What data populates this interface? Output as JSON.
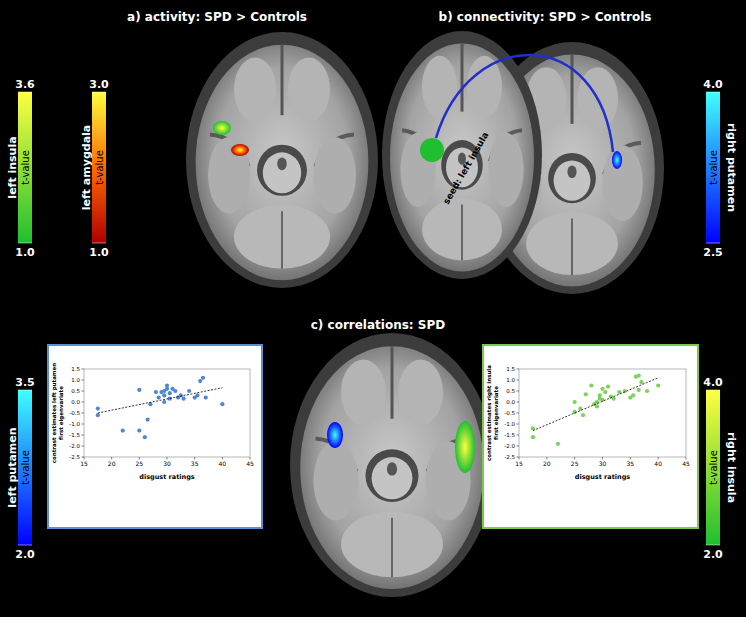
{
  "titles": [
    "a) activity: SPD > Controls",
    "b) connectivity: SPD > Controls",
    "c) correlations: SPD"
  ],
  "seed_label": "seed: left insula",
  "colorbars": [
    {
      "region": "left insula",
      "label": "t-value",
      "range": [
        1,
        3.6
      ],
      "ticks": [
        {
          "value": 1,
          "label": "1.0"
        },
        3.6
      ],
      "colors": [
        "#1fbf2f",
        "#ffff40"
      ]
    },
    {
      "region": "left amygdala",
      "label": "t-value",
      "range": [
        1,
        3
      ],
      "ticks": [
        {
          "value": 1,
          "label": "1.0"
        },
        {
          "value": 3,
          "label": "3.0"
        }
      ],
      "colors": [
        "#b00000",
        "#ff6a00",
        "#ffff40"
      ]
    },
    {
      "region": "right putamen",
      "label": "t-value",
      "range": [
        2.5,
        4
      ],
      "ticks": [
        2.5,
        {
          "value": 4,
          "label": "4.0"
        }
      ],
      "colors": [
        "#0000ff",
        "#40ffff"
      ]
    },
    {
      "region": "left putamen",
      "label": "t-value",
      "range": [
        2,
        3.5
      ],
      "ticks": [
        {
          "value": 2,
          "label": "2.0"
        },
        3.5
      ],
      "colors": [
        "#0000ff",
        "#40ffff"
      ]
    },
    {
      "region": "right insula",
      "label": "t-value",
      "range": [
        2,
        4
      ],
      "ticks": [
        {
          "value": 2,
          "label": "2.0"
        },
        {
          "value": 4,
          "label": "4.0"
        }
      ],
      "colors": [
        "#1fbf2f",
        "#ffff40"
      ]
    }
  ],
  "chart_data": [
    {
      "type": "scatter",
      "x_label": "disgust ratings",
      "y_label": [
        "contrast estimates left putamen",
        "first eigenvariate"
      ],
      "xlim": [
        15,
        45
      ],
      "xticks": [
        15,
        20,
        25,
        30,
        35,
        40,
        45
      ],
      "ylim": [
        -2.5,
        1.5
      ],
      "yticks": [
        -2.5,
        {
          "value": -2,
          "label": "-2.0"
        },
        -1.5,
        {
          "value": -1,
          "label": "-1.0"
        },
        -0.5,
        {
          "value": 0,
          "label": "0.0"
        },
        0.5,
        {
          "value": 1,
          "label": "1.0"
        },
        1.5
      ],
      "grid": false,
      "series": [
        {
          "type": "scatter",
          "marker": "circle",
          "color": "#4f86d9",
          "x": [
            17.5,
            17.5,
            22,
            25,
            25,
            26,
            26.5,
            27,
            28,
            28.5,
            29,
            29.5,
            29.5,
            29.5,
            30,
            30,
            30.5,
            30.5,
            31,
            31.5,
            32,
            32.5,
            33,
            34,
            35,
            35.5,
            36,
            36.5,
            37,
            40
          ],
          "values": [
            -0.3,
            -0.6,
            -1.3,
            0.55,
            -1.3,
            -1.6,
            -0.8,
            -0.1,
            0.45,
            0.2,
            0.45,
            0.5,
            0.3,
            0,
            0.6,
            0.75,
            0.4,
            0.15,
            0.6,
            0.5,
            0.2,
            0.3,
            0.15,
            0.5,
            0.2,
            0.3,
            0.95,
            1.1,
            0.2,
            -0.1
          ]
        },
        {
          "type": "line",
          "line_style": "dashed",
          "color": "#000000",
          "x": [
            17.5,
            40
          ],
          "values": [
            -0.5,
            0.65
          ]
        }
      ]
    },
    {
      "type": "scatter",
      "x_label": "disgust ratings",
      "y_label": [
        "contrast estimates right insula",
        "first eigenvariate"
      ],
      "xlim": [
        15,
        45
      ],
      "xticks": [
        15,
        20,
        25,
        30,
        35,
        40,
        45
      ],
      "ylim": [
        -2.5,
        1.5
      ],
      "yticks": [
        -2.5,
        {
          "value": -2,
          "label": "-2.0"
        },
        -1.5,
        {
          "value": -1,
          "label": "-1.0"
        },
        -0.5,
        {
          "value": 0,
          "label": "0.0"
        },
        0.5,
        {
          "value": 1,
          "label": "1.0"
        },
        1.5
      ],
      "grid": false,
      "series": [
        {
          "type": "scatter",
          "marker": "circle",
          "color": "#7dd35a",
          "x": [
            17.5,
            17.5,
            22,
            25,
            25,
            26,
            26.5,
            27,
            28,
            28.5,
            29,
            29,
            29.5,
            29.5,
            30,
            30,
            30.5,
            31,
            31.5,
            32,
            33,
            34,
            35,
            35.5,
            36,
            36.5,
            36.5,
            37,
            38,
            40
          ],
          "values": [
            -1.2,
            -1.6,
            -1.9,
            0,
            -0.45,
            -0.3,
            -0.6,
            0.35,
            0.75,
            -0.1,
            -0.2,
            0,
            0.3,
            0.15,
            0.6,
            0.1,
            0.45,
            0.7,
            0.25,
            0.15,
            0.45,
            0.5,
            0.2,
            0.3,
            1.15,
            0.55,
            1.2,
            0.9,
            0.5,
            0.75
          ]
        },
        {
          "type": "line",
          "line_style": "dashed",
          "color": "#000000",
          "x": [
            17.5,
            40
          ],
          "values": [
            -1.3,
            1.1
          ]
        }
      ]
    }
  ]
}
